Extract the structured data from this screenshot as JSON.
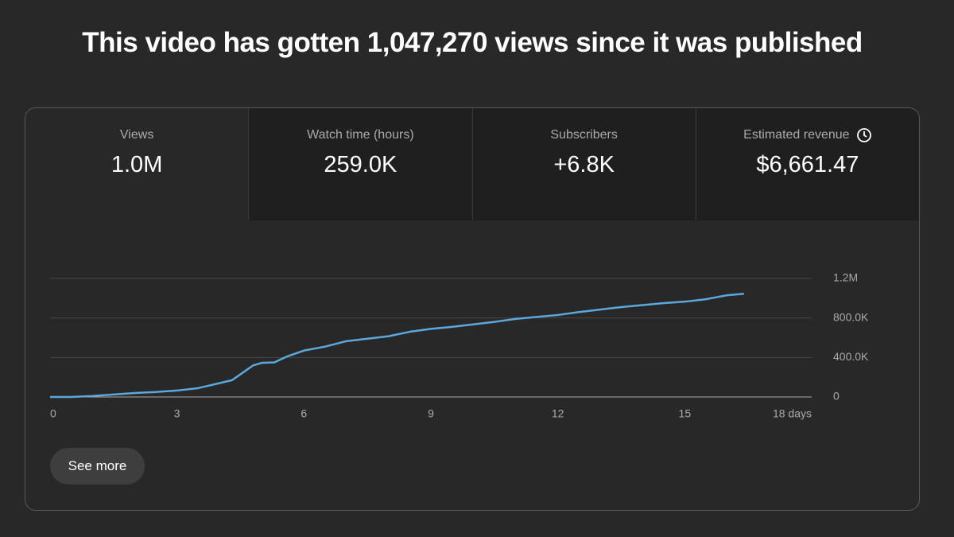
{
  "header": {
    "title": "This video has gotten 1,047,270 views since it was published"
  },
  "metrics": [
    {
      "label": "Views",
      "value": "1.0M"
    },
    {
      "label": "Watch time (hours)",
      "value": "259.0K"
    },
    {
      "label": "Subscribers",
      "value": "+6.8K"
    },
    {
      "label": "Estimated revenue",
      "value": "$6,661.47"
    }
  ],
  "chart_data": {
    "type": "line",
    "color": "#5ba8dc",
    "x": [
      0,
      0.5,
      1,
      1.5,
      2,
      2.5,
      3,
      3.5,
      4,
      4.3,
      4.5,
      4.8,
      5,
      5.3,
      5.6,
      6,
      6.5,
      7,
      7.5,
      8,
      8.5,
      9,
      9.5,
      10,
      10.5,
      11,
      11.5,
      12,
      12.5,
      13,
      13.5,
      14,
      14.5,
      15,
      15.5,
      16,
      16.4
    ],
    "values": [
      0,
      0,
      10000,
      25000,
      40000,
      50000,
      65000,
      90000,
      140000,
      170000,
      230000,
      320000,
      345000,
      350000,
      410000,
      470000,
      510000,
      565000,
      590000,
      615000,
      660000,
      690000,
      710000,
      735000,
      760000,
      790000,
      810000,
      830000,
      860000,
      885000,
      910000,
      930000,
      950000,
      965000,
      990000,
      1030000,
      1045000
    ],
    "xlim": [
      0,
      18
    ],
    "xticks": [
      0,
      3,
      6,
      9,
      12,
      15,
      {
        "value": 18,
        "label": "18 days"
      }
    ],
    "ylim": [
      0,
      1200000
    ],
    "yticks": [
      0,
      {
        "value": 400000,
        "label": "400.0K"
      },
      {
        "value": 800000,
        "label": "800.0K"
      },
      {
        "value": 1200000,
        "label": "1.2M"
      }
    ],
    "grid": true
  },
  "button": {
    "label": "See more"
  }
}
